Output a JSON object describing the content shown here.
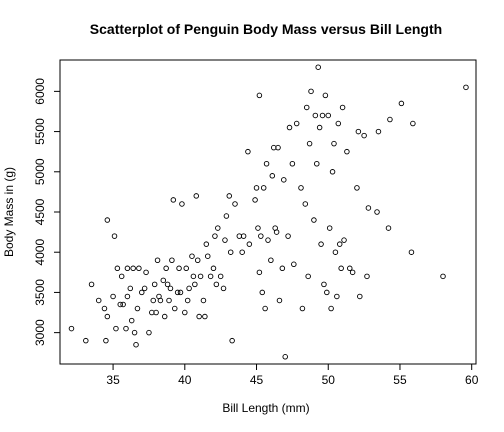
{
  "chart_data": {
    "type": "scatter",
    "title": "Scatterplot of Penguin Body Mass versus Bill Length",
    "xlabel": "Bill Length (mm)",
    "ylabel": "Body Mass in (g)",
    "xlim": [
      31.3,
      60.3
    ],
    "ylim": [
      2610,
      6390
    ],
    "xticks": [
      35,
      40,
      45,
      50,
      55,
      60
    ],
    "yticks": [
      3000,
      3500,
      4000,
      4500,
      5000,
      5500,
      6000
    ],
    "grid": false,
    "legend": "none",
    "marker": "open-circle",
    "series": [
      {
        "points": [
          [
            32.1,
            3050
          ],
          [
            33.1,
            2900
          ],
          [
            33.5,
            3600
          ],
          [
            34.0,
            3400
          ],
          [
            34.4,
            3300
          ],
          [
            34.5,
            2900
          ],
          [
            34.6,
            4400
          ],
          [
            34.6,
            3200
          ],
          [
            35.0,
            3450
          ],
          [
            35.1,
            4200
          ],
          [
            35.2,
            3050
          ],
          [
            35.3,
            3800
          ],
          [
            35.5,
            3350
          ],
          [
            35.6,
            3700
          ],
          [
            35.7,
            3350
          ],
          [
            35.9,
            3050
          ],
          [
            36.0,
            3800
          ],
          [
            36.0,
            3450
          ],
          [
            36.2,
            3550
          ],
          [
            36.3,
            3150
          ],
          [
            36.4,
            3800
          ],
          [
            36.5,
            3000
          ],
          [
            36.6,
            2850
          ],
          [
            36.7,
            3300
          ],
          [
            36.8,
            3800
          ],
          [
            37.0,
            3500
          ],
          [
            37.2,
            3550
          ],
          [
            37.3,
            3750
          ],
          [
            37.5,
            3000
          ],
          [
            37.7,
            3250
          ],
          [
            37.8,
            3400
          ],
          [
            37.9,
            3600
          ],
          [
            38.0,
            3250
          ],
          [
            38.1,
            3900
          ],
          [
            38.2,
            3450
          ],
          [
            38.3,
            3400
          ],
          [
            38.5,
            3650
          ],
          [
            38.6,
            3200
          ],
          [
            38.7,
            3800
          ],
          [
            38.8,
            3600
          ],
          [
            38.9,
            3400
          ],
          [
            39.0,
            3550
          ],
          [
            39.1,
            3900
          ],
          [
            39.2,
            4650
          ],
          [
            39.3,
            3300
          ],
          [
            39.5,
            3500
          ],
          [
            39.6,
            3800
          ],
          [
            39.7,
            3500
          ],
          [
            39.8,
            4600
          ],
          [
            40.0,
            3250
          ],
          [
            40.1,
            3800
          ],
          [
            40.2,
            3400
          ],
          [
            40.3,
            3550
          ],
          [
            40.5,
            3950
          ],
          [
            40.6,
            3700
          ],
          [
            40.7,
            3600
          ],
          [
            40.8,
            4700
          ],
          [
            40.9,
            3900
          ],
          [
            41.0,
            3200
          ],
          [
            41.1,
            3700
          ],
          [
            41.3,
            3400
          ],
          [
            41.4,
            3200
          ],
          [
            41.5,
            4100
          ],
          [
            41.6,
            3950
          ],
          [
            41.8,
            3700
          ],
          [
            42.0,
            3800
          ],
          [
            42.1,
            4200
          ],
          [
            42.2,
            3600
          ],
          [
            42.3,
            4300
          ],
          [
            42.5,
            3700
          ],
          [
            42.7,
            3550
          ],
          [
            42.8,
            4150
          ],
          [
            42.9,
            4450
          ],
          [
            43.1,
            4700
          ],
          [
            43.2,
            4000
          ],
          [
            43.3,
            2900
          ],
          [
            43.5,
            4600
          ],
          [
            43.8,
            4200
          ],
          [
            44.0,
            4000
          ],
          [
            44.1,
            4200
          ],
          [
            44.4,
            5250
          ],
          [
            44.5,
            4100
          ],
          [
            44.9,
            4650
          ],
          [
            45.0,
            4800
          ],
          [
            45.1,
            4300
          ],
          [
            45.2,
            5950
          ],
          [
            45.2,
            3750
          ],
          [
            45.3,
            4200
          ],
          [
            45.4,
            3500
          ],
          [
            45.5,
            4800
          ],
          [
            45.6,
            3300
          ],
          [
            45.7,
            5100
          ],
          [
            45.8,
            4150
          ],
          [
            46.0,
            3900
          ],
          [
            46.1,
            4950
          ],
          [
            46.2,
            5300
          ],
          [
            46.3,
            4300
          ],
          [
            46.4,
            4250
          ],
          [
            46.5,
            5300
          ],
          [
            46.6,
            3400
          ],
          [
            46.8,
            3800
          ],
          [
            46.9,
            4900
          ],
          [
            47.0,
            2700
          ],
          [
            47.2,
            4200
          ],
          [
            47.3,
            5550
          ],
          [
            47.5,
            5100
          ],
          [
            47.6,
            3850
          ],
          [
            47.8,
            5600
          ],
          [
            48.1,
            4800
          ],
          [
            48.2,
            3300
          ],
          [
            48.4,
            4600
          ],
          [
            48.5,
            5800
          ],
          [
            48.6,
            3700
          ],
          [
            48.7,
            5350
          ],
          [
            48.8,
            6000
          ],
          [
            49.0,
            4400
          ],
          [
            49.1,
            5700
          ],
          [
            49.2,
            5100
          ],
          [
            49.3,
            6300
          ],
          [
            49.4,
            5550
          ],
          [
            49.5,
            4100
          ],
          [
            49.6,
            5700
          ],
          [
            49.7,
            3600
          ],
          [
            49.8,
            5950
          ],
          [
            49.9,
            3500
          ],
          [
            50.0,
            5700
          ],
          [
            50.1,
            4300
          ],
          [
            50.2,
            3300
          ],
          [
            50.3,
            5000
          ],
          [
            50.4,
            5350
          ],
          [
            50.5,
            4000
          ],
          [
            50.6,
            3450
          ],
          [
            50.7,
            5600
          ],
          [
            50.8,
            4100
          ],
          [
            50.9,
            3800
          ],
          [
            51.0,
            5800
          ],
          [
            51.1,
            4150
          ],
          [
            51.3,
            5250
          ],
          [
            51.5,
            3800
          ],
          [
            51.7,
            3750
          ],
          [
            52.0,
            4800
          ],
          [
            52.1,
            5500
          ],
          [
            52.2,
            3450
          ],
          [
            52.5,
            5450
          ],
          [
            52.7,
            3700
          ],
          [
            52.8,
            4550
          ],
          [
            53.4,
            4500
          ],
          [
            53.5,
            5500
          ],
          [
            54.2,
            4300
          ],
          [
            54.3,
            5650
          ],
          [
            55.1,
            5850
          ],
          [
            55.8,
            4000
          ],
          [
            55.9,
            5600
          ],
          [
            58.0,
            3700
          ],
          [
            59.6,
            6050
          ]
        ]
      }
    ]
  }
}
